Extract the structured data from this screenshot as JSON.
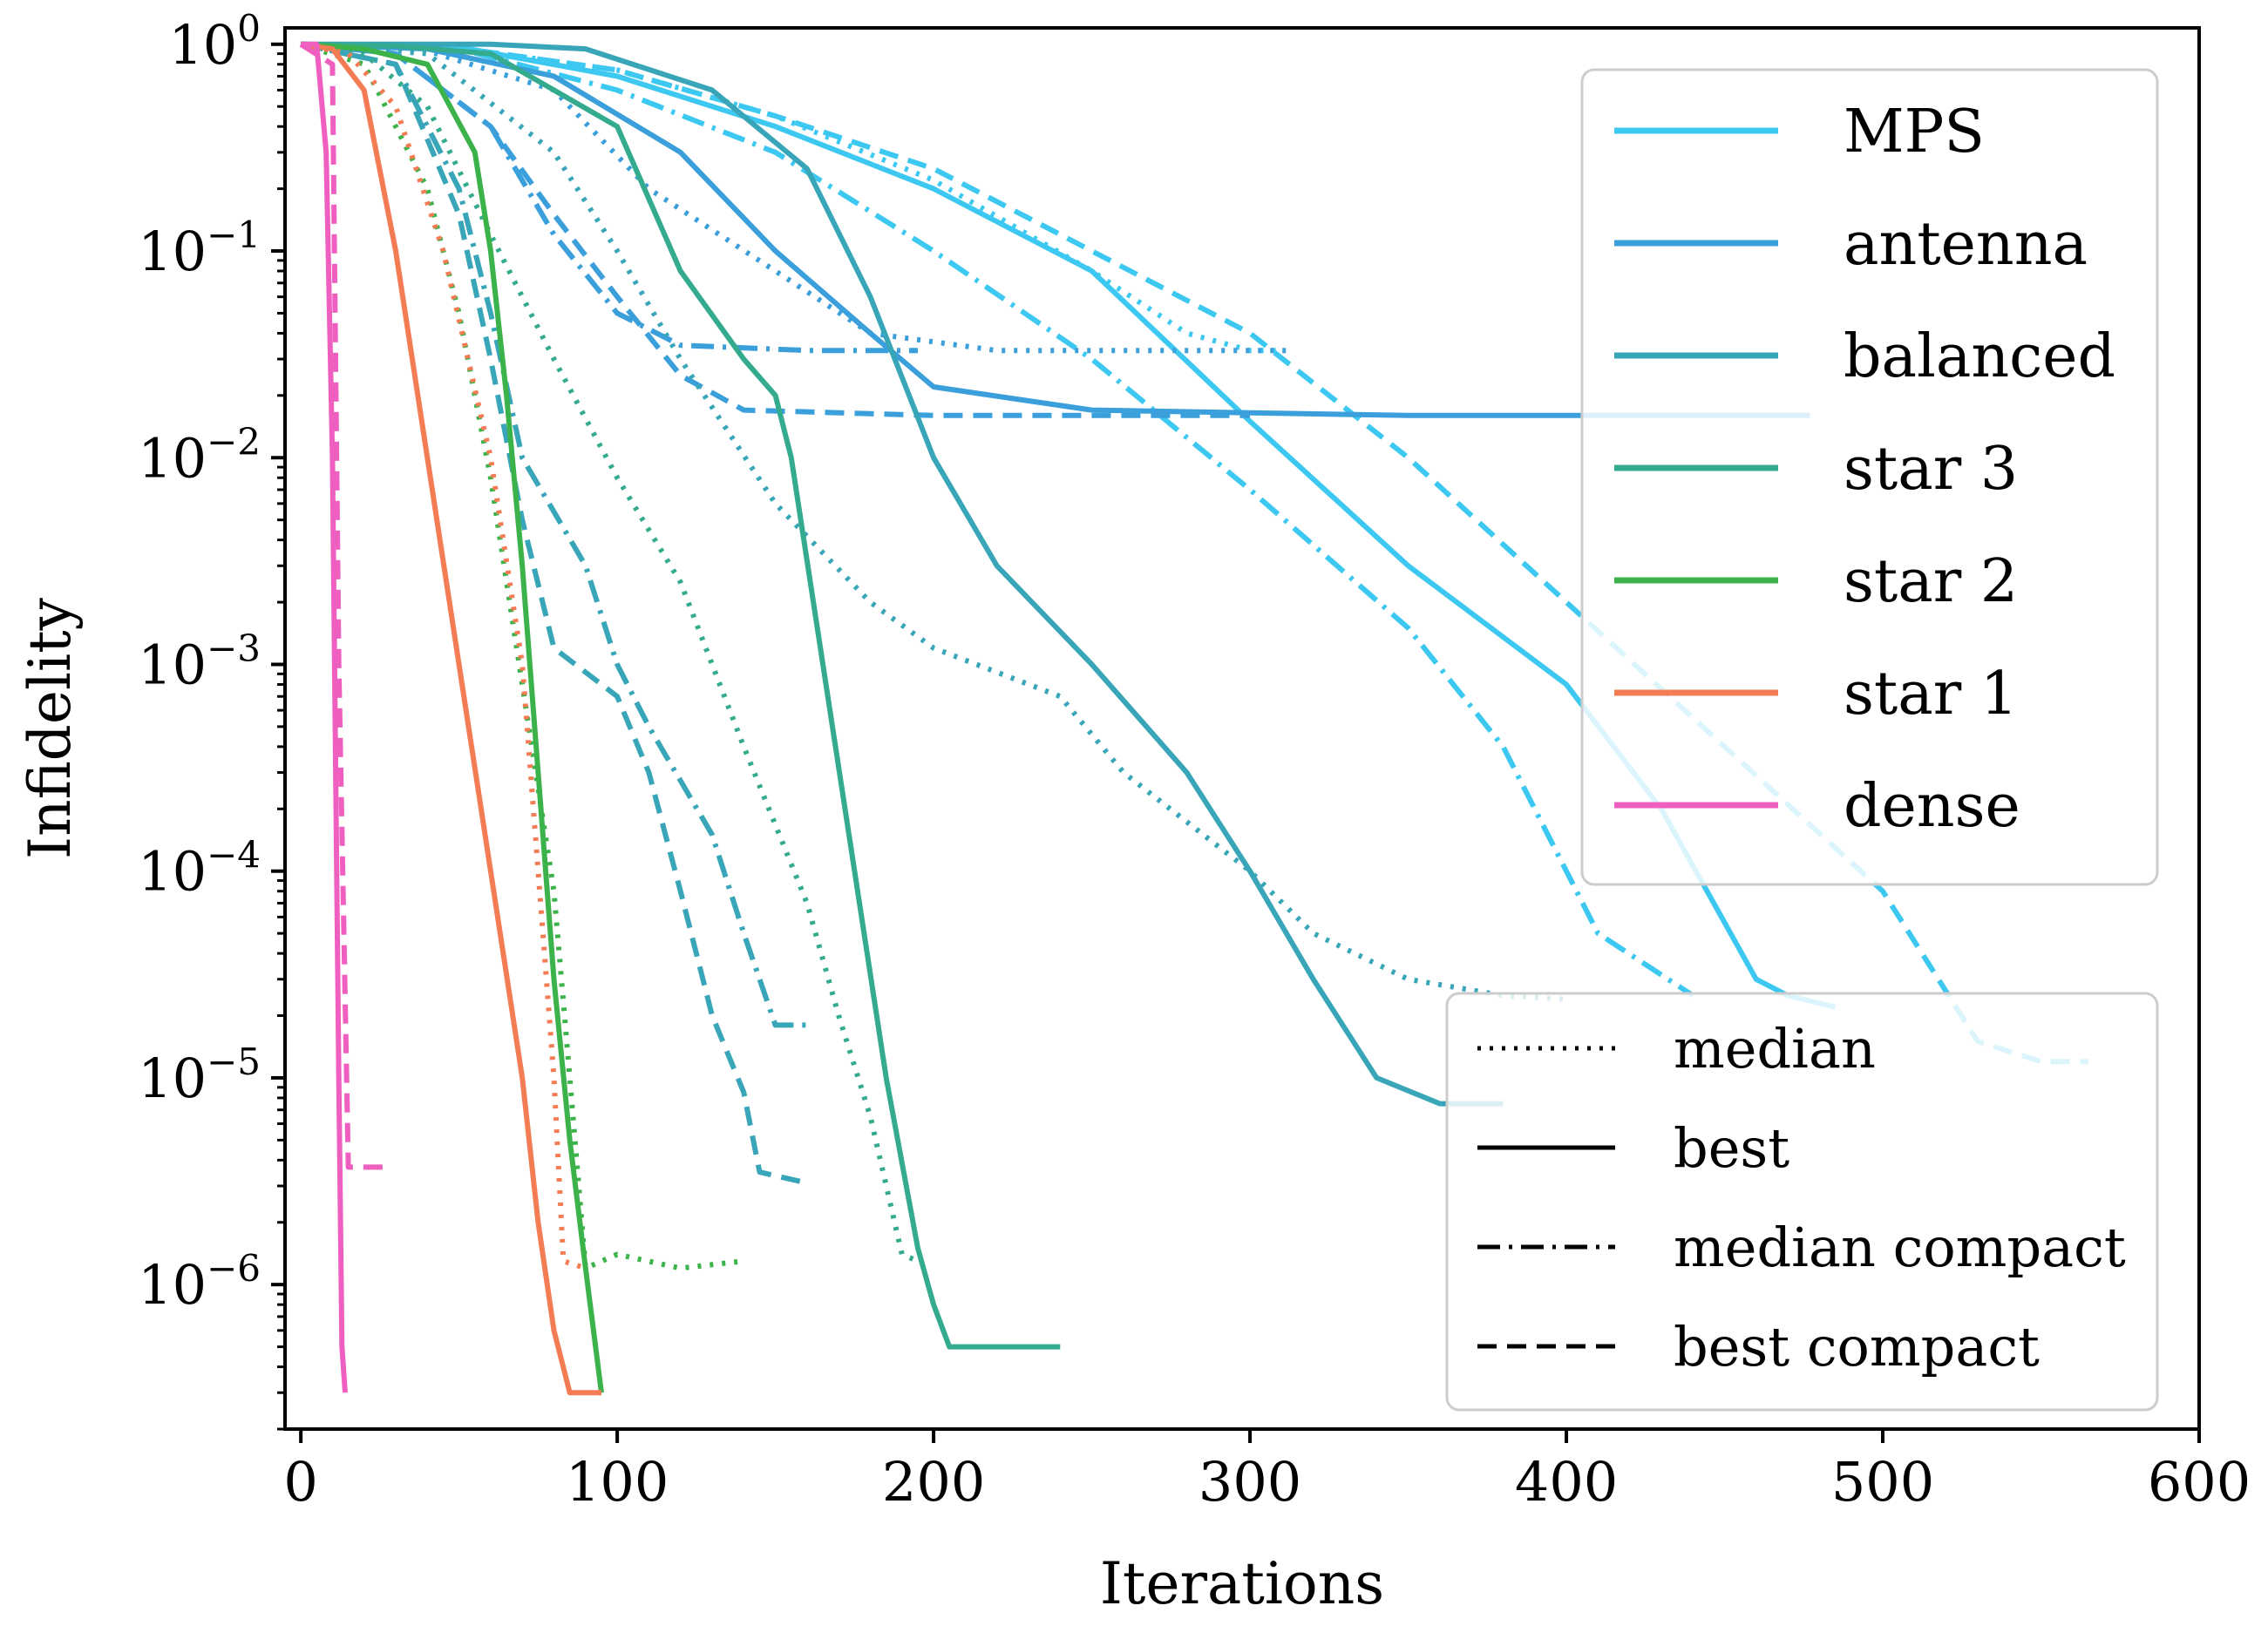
{
  "chart_data": {
    "type": "line",
    "title": "",
    "xlabel": "Iterations",
    "ylabel": "Infidelity",
    "xlim": [
      -5,
      600
    ],
    "ylim": [
      2e-07,
      1.2
    ],
    "yscale": "log",
    "grid": false,
    "x_ticks": [
      0,
      100,
      200,
      300,
      400,
      500,
      600
    ],
    "x_tick_labels": [
      "0",
      "100",
      "200",
      "300",
      "400",
      "500",
      "600"
    ],
    "y_ticks": [
      {
        "value": 1,
        "base": "10",
        "exp": "0"
      },
      {
        "value": 0.1,
        "base": "10",
        "exp": "−1"
      },
      {
        "value": 0.01,
        "base": "10",
        "exp": "−2"
      },
      {
        "value": 0.001,
        "base": "10",
        "exp": "−3"
      },
      {
        "value": 0.0001,
        "base": "10",
        "exp": "−4"
      },
      {
        "value": 1e-05,
        "base": "10",
        "exp": "−5"
      },
      {
        "value": 1e-06,
        "base": "10",
        "exp": "−6"
      }
    ],
    "legend_topology": {
      "placement": "top-right",
      "entries": [
        {
          "label": "MPS",
          "color": "#3cc8f0"
        },
        {
          "label": "antenna",
          "color": "#3a9fda"
        },
        {
          "label": "balanced",
          "color": "#38a6b8"
        },
        {
          "label": "star 3",
          "color": "#34ab8e"
        },
        {
          "label": "star 2",
          "color": "#3cb34a"
        },
        {
          "label": "star 1",
          "color": "#f47c55"
        },
        {
          "label": "dense",
          "color": "#ee5fc0"
        }
      ]
    },
    "legend_style": {
      "placement": "lower-right",
      "entries": [
        {
          "label": "median",
          "style": "dotted"
        },
        {
          "label": "best",
          "style": "solid"
        },
        {
          "label": "median compact",
          "style": "dashdot"
        },
        {
          "label": "best compact",
          "style": "dashed"
        }
      ]
    },
    "series": [
      {
        "name": "MPS",
        "style": "solid",
        "color": "#3cc8f0",
        "points": [
          [
            0,
            1
          ],
          [
            50,
            0.97
          ],
          [
            100,
            0.7
          ],
          [
            150,
            0.4
          ],
          [
            200,
            0.2
          ],
          [
            250,
            0.08
          ],
          [
            300,
            0.015
          ],
          [
            350,
            0.003
          ],
          [
            400,
            0.0008
          ],
          [
            430,
            0.0002
          ],
          [
            460,
            3e-05
          ],
          [
            470,
            2.5e-05
          ],
          [
            485,
            2.2e-05
          ]
        ]
      },
      {
        "name": "MPS",
        "style": "dotted",
        "color": "#3cc8f0",
        "points": [
          [
            0,
            1
          ],
          [
            50,
            0.96
          ],
          [
            100,
            0.75
          ],
          [
            150,
            0.45
          ],
          [
            200,
            0.22
          ],
          [
            250,
            0.08
          ],
          [
            280,
            0.04
          ],
          [
            300,
            0.033
          ],
          [
            310,
            0.033
          ]
        ]
      },
      {
        "name": "MPS",
        "style": "dashdot",
        "color": "#3cc8f0",
        "points": [
          [
            0,
            1
          ],
          [
            50,
            0.95
          ],
          [
            100,
            0.6
          ],
          [
            150,
            0.3
          ],
          [
            200,
            0.1
          ],
          [
            250,
            0.03
          ],
          [
            300,
            0.007
          ],
          [
            350,
            0.0015
          ],
          [
            380,
            0.0004
          ],
          [
            410,
            5e-05
          ],
          [
            440,
            2.5e-05
          ]
        ]
      },
      {
        "name": "MPS",
        "style": "dashed",
        "color": "#3cc8f0",
        "points": [
          [
            0,
            1
          ],
          [
            50,
            0.96
          ],
          [
            100,
            0.75
          ],
          [
            150,
            0.45
          ],
          [
            200,
            0.25
          ],
          [
            250,
            0.1
          ],
          [
            300,
            0.04
          ],
          [
            350,
            0.01
          ],
          [
            400,
            0.002
          ],
          [
            450,
            0.0004
          ],
          [
            500,
            8e-05
          ],
          [
            530,
            1.5e-05
          ],
          [
            550,
            1.2e-05
          ],
          [
            565,
            1.2e-05
          ]
        ]
      },
      {
        "name": "antenna",
        "style": "solid",
        "color": "#3a9fda",
        "points": [
          [
            0,
            1
          ],
          [
            40,
            0.95
          ],
          [
            80,
            0.7
          ],
          [
            120,
            0.3
          ],
          [
            150,
            0.1
          ],
          [
            180,
            0.04
          ],
          [
            200,
            0.022
          ],
          [
            250,
            0.017
          ],
          [
            350,
            0.016
          ],
          [
            450,
            0.016
          ],
          [
            477,
            0.016
          ]
        ]
      },
      {
        "name": "antenna",
        "style": "dotted",
        "color": "#3a9fda",
        "points": [
          [
            0,
            1
          ],
          [
            40,
            0.93
          ],
          [
            80,
            0.6
          ],
          [
            110,
            0.2
          ],
          [
            150,
            0.08
          ],
          [
            180,
            0.04
          ],
          [
            220,
            0.033
          ],
          [
            312,
            0.033
          ]
        ]
      },
      {
        "name": "antenna",
        "style": "dashdot",
        "color": "#3a9fda",
        "points": [
          [
            0,
            1
          ],
          [
            30,
            0.9
          ],
          [
            60,
            0.4
          ],
          [
            80,
            0.12
          ],
          [
            100,
            0.05
          ],
          [
            120,
            0.035
          ],
          [
            160,
            0.033
          ],
          [
            195,
            0.033
          ]
        ]
      },
      {
        "name": "antenna",
        "style": "dashed",
        "color": "#3a9fda",
        "points": [
          [
            0,
            1
          ],
          [
            30,
            0.9
          ],
          [
            60,
            0.4
          ],
          [
            80,
            0.15
          ],
          [
            100,
            0.06
          ],
          [
            120,
            0.025
          ],
          [
            140,
            0.017
          ],
          [
            200,
            0.016
          ],
          [
            300,
            0.016
          ]
        ]
      },
      {
        "name": "balanced",
        "style": "solid",
        "color": "#38a6b8",
        "points": [
          [
            0,
            1
          ],
          [
            60,
            1
          ],
          [
            90,
            0.95
          ],
          [
            130,
            0.6
          ],
          [
            160,
            0.25
          ],
          [
            180,
            0.06
          ],
          [
            200,
            0.01
          ],
          [
            220,
            0.003
          ],
          [
            250,
            0.001
          ],
          [
            280,
            0.0003
          ],
          [
            300,
            0.0001
          ],
          [
            320,
            3e-05
          ],
          [
            340,
            1e-05
          ],
          [
            360,
            7.5e-06
          ],
          [
            380,
            7.5e-06
          ]
        ]
      },
      {
        "name": "balanced",
        "style": "dotted",
        "color": "#38a6b8",
        "points": [
          [
            0,
            1
          ],
          [
            40,
            0.9
          ],
          [
            80,
            0.3
          ],
          [
            100,
            0.1
          ],
          [
            120,
            0.03
          ],
          [
            150,
            0.006
          ],
          [
            180,
            0.002
          ],
          [
            200,
            0.0012
          ],
          [
            240,
            0.0007
          ],
          [
            260,
            0.0003
          ],
          [
            300,
            0.0001
          ],
          [
            320,
            5e-05
          ],
          [
            350,
            3e-05
          ],
          [
            380,
            2.5e-05
          ],
          [
            400,
            2.4e-05
          ]
        ]
      },
      {
        "name": "balanced",
        "style": "dashdot",
        "color": "#38a6b8",
        "points": [
          [
            0,
            1
          ],
          [
            30,
            0.8
          ],
          [
            50,
            0.2
          ],
          [
            60,
            0.05
          ],
          [
            70,
            0.01
          ],
          [
            90,
            0.003
          ],
          [
            100,
            0.001
          ],
          [
            110,
            0.0005
          ],
          [
            130,
            0.00015
          ],
          [
            140,
            5e-05
          ],
          [
            150,
            1.8e-05
          ],
          [
            160,
            1.8e-05
          ]
        ]
      },
      {
        "name": "balanced",
        "style": "dashed",
        "color": "#38a6b8",
        "points": [
          [
            0,
            1
          ],
          [
            30,
            0.8
          ],
          [
            50,
            0.15
          ],
          [
            60,
            0.03
          ],
          [
            70,
            0.005
          ],
          [
            80,
            0.0012
          ],
          [
            100,
            0.0007
          ],
          [
            110,
            0.0003
          ],
          [
            120,
            8e-05
          ],
          [
            130,
            2e-05
          ],
          [
            140,
            8.5e-06
          ],
          [
            145,
            3.5e-06
          ],
          [
            160,
            3.1e-06
          ]
        ]
      },
      {
        "name": "star 3",
        "style": "solid",
        "color": "#34ab8e",
        "points": [
          [
            0,
            1
          ],
          [
            30,
            0.98
          ],
          [
            60,
            0.9
          ],
          [
            100,
            0.4
          ],
          [
            120,
            0.08
          ],
          [
            140,
            0.03
          ],
          [
            150,
            0.02
          ],
          [
            155,
            0.01
          ],
          [
            165,
            0.001
          ],
          [
            175,
            0.0001
          ],
          [
            185,
            1e-05
          ],
          [
            195,
            1.5e-06
          ],
          [
            200,
            8e-07
          ],
          [
            205,
            5e-07
          ],
          [
            220,
            5e-07
          ],
          [
            240,
            5e-07
          ]
        ]
      },
      {
        "name": "star 3",
        "style": "dotted",
        "color": "#34ab8e",
        "points": [
          [
            0,
            1
          ],
          [
            20,
            0.9
          ],
          [
            40,
            0.5
          ],
          [
            60,
            0.12
          ],
          [
            80,
            0.03
          ],
          [
            100,
            0.008
          ],
          [
            120,
            0.0025
          ],
          [
            140,
            0.0004
          ],
          [
            160,
            7e-05
          ],
          [
            170,
            2e-05
          ],
          [
            180,
            6.5e-06
          ],
          [
            190,
            1.4e-06
          ],
          [
            195,
            1.3e-06
          ]
        ]
      },
      {
        "name": "star 2",
        "style": "solid",
        "color": "#3cb34a",
        "points": [
          [
            0,
            1
          ],
          [
            20,
            0.95
          ],
          [
            40,
            0.8
          ],
          [
            55,
            0.3
          ],
          [
            60,
            0.1
          ],
          [
            65,
            0.02
          ],
          [
            70,
            0.003
          ],
          [
            75,
            0.0003
          ],
          [
            80,
            3e-05
          ],
          [
            85,
            5e-06
          ],
          [
            90,
            1.2e-06
          ],
          [
            95,
            3e-07
          ]
        ]
      },
      {
        "name": "star 2",
        "style": "dotted",
        "color": "#3cb34a",
        "points": [
          [
            0,
            1
          ],
          [
            20,
            0.8
          ],
          [
            40,
            0.2
          ],
          [
            50,
            0.05
          ],
          [
            60,
            0.008
          ],
          [
            70,
            0.0008
          ],
          [
            80,
            8e-05
          ],
          [
            85,
            1e-05
          ],
          [
            90,
            1.2e-06
          ],
          [
            100,
            1.4e-06
          ],
          [
            120,
            1.2e-06
          ],
          [
            140,
            1.3e-06
          ]
        ]
      },
      {
        "name": "star 1",
        "style": "solid",
        "color": "#f47c55",
        "points": [
          [
            0,
            1
          ],
          [
            10,
            0.95
          ],
          [
            20,
            0.6
          ],
          [
            30,
            0.1
          ],
          [
            40,
            0.01
          ],
          [
            50,
            0.001
          ],
          [
            60,
            0.0001
          ],
          [
            70,
            1e-05
          ],
          [
            75,
            2e-06
          ],
          [
            80,
            6e-07
          ],
          [
            85,
            3e-07
          ],
          [
            95,
            3e-07
          ]
        ]
      },
      {
        "name": "star 1",
        "style": "dotted",
        "color": "#f47c55",
        "points": [
          [
            0,
            1
          ],
          [
            15,
            0.9
          ],
          [
            30,
            0.5
          ],
          [
            45,
            0.1
          ],
          [
            60,
            0.01
          ],
          [
            70,
            0.001
          ],
          [
            75,
            0.0001
          ],
          [
            80,
            1e-05
          ],
          [
            83,
            1.3e-06
          ],
          [
            90,
            1.2e-06
          ]
        ]
      },
      {
        "name": "dense",
        "style": "solid",
        "color": "#ee5fc0",
        "points": [
          [
            0,
            1
          ],
          [
            5,
            1
          ],
          [
            8,
            0.3
          ],
          [
            10,
            0.01
          ],
          [
            12,
            1e-05
          ],
          [
            13,
            5e-07
          ],
          [
            14,
            3e-07
          ]
        ]
      },
      {
        "name": "dense",
        "style": "dashed",
        "color": "#ee5fc0",
        "points": [
          [
            0,
            1
          ],
          [
            10,
            0.8
          ],
          [
            12,
            0.001
          ],
          [
            15,
            3.7e-06
          ],
          [
            28,
            3.7e-06
          ]
        ]
      }
    ]
  }
}
